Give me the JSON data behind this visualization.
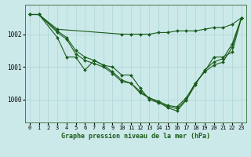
{
  "title": "Graphe pression niveau de la mer (hPa)",
  "bg_color": "#cce9ea",
  "grid_color": "#aad4d6",
  "line_color": "#1a5c1a",
  "xlim": [
    -0.5,
    23.5
  ],
  "ylim": [
    999.3,
    1002.9
  ],
  "yticks": [
    1000,
    1001,
    1002
  ],
  "xticks": [
    0,
    1,
    2,
    3,
    4,
    5,
    6,
    7,
    8,
    9,
    10,
    11,
    12,
    13,
    14,
    15,
    16,
    17,
    18,
    19,
    20,
    21,
    22,
    23
  ],
  "series": [
    {
      "x": [
        0,
        1,
        3,
        10,
        11,
        12,
        13,
        14,
        15,
        16,
        17,
        18,
        19,
        20,
        21,
        22,
        23
      ],
      "y": [
        1002.6,
        1002.6,
        1002.15,
        1002.0,
        1002.0,
        1002.0,
        1002.0,
        1002.05,
        1002.05,
        1002.1,
        1002.1,
        1002.1,
        1002.15,
        1002.2,
        1002.2,
        1002.3,
        1002.5
      ]
    },
    {
      "x": [
        0,
        1,
        3,
        4,
        5,
        6,
        7,
        8,
        9,
        10,
        11,
        12,
        13,
        14,
        15,
        16,
        17,
        18,
        19,
        20,
        21,
        22,
        23
      ],
      "y": [
        1002.6,
        1002.6,
        1001.9,
        1001.3,
        1001.3,
        1000.9,
        1001.2,
        1001.05,
        1001.0,
        1000.75,
        1000.75,
        1000.35,
        1000.0,
        999.9,
        999.8,
        999.72,
        1000.0,
        1000.5,
        1000.85,
        1001.3,
        1001.3,
        1001.45,
        1002.5
      ]
    },
    {
      "x": [
        0,
        1,
        3,
        4,
        5,
        6,
        7,
        8,
        9,
        10,
        11,
        12,
        13,
        14,
        15,
        16,
        17,
        18,
        19,
        20,
        21,
        22,
        23
      ],
      "y": [
        1002.6,
        1002.6,
        1002.05,
        1001.85,
        1001.4,
        1001.2,
        1001.1,
        1001.0,
        1000.8,
        1000.55,
        1000.5,
        1000.2,
        1000.05,
        999.95,
        999.82,
        999.78,
        1000.05,
        1000.5,
        1000.85,
        1001.05,
        1001.15,
        1001.6,
        1002.5
      ]
    },
    {
      "x": [
        0,
        1,
        3,
        4,
        5,
        6,
        7,
        8,
        9,
        10,
        11,
        12,
        13,
        14,
        15,
        16,
        17,
        18,
        19,
        20,
        21,
        22,
        23
      ],
      "y": [
        1002.6,
        1002.6,
        1002.1,
        1001.9,
        1001.5,
        1001.3,
        1001.2,
        1001.05,
        1000.85,
        1000.6,
        1000.5,
        1000.25,
        1000.05,
        999.92,
        999.75,
        999.65,
        999.98,
        1000.45,
        1000.9,
        1001.15,
        1001.25,
        1001.7,
        1002.5
      ]
    }
  ]
}
